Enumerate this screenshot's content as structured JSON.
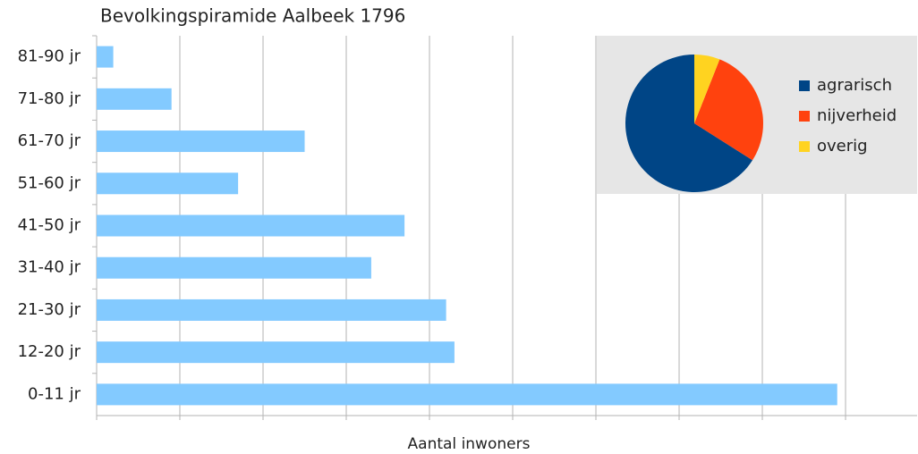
{
  "chart_data": [
    {
      "type": "barh",
      "title": "Bevolkingspiramide Aalbeek 1796",
      "xlabel": "Aantal inwoners",
      "categories": [
        "81-90 jr",
        "71-80 jr",
        "61-70 jr",
        "51-60 jr",
        "41-50 jr",
        "31-40 jr",
        "21-30 jr",
        "12-20 jr",
        "0-11 jr"
      ],
      "values": [
        2,
        9,
        25,
        17,
        37,
        33,
        42,
        43,
        89
      ],
      "color": "#83caff",
      "xlim": [
        0,
        98.6
      ],
      "xticks": [
        0,
        10,
        20,
        30,
        40,
        50,
        60,
        70,
        80,
        90
      ],
      "grid": true
    },
    {
      "type": "pie",
      "categories": [
        "agrarisch",
        "nijverheid",
        "overig"
      ],
      "values": [
        66,
        28,
        6
      ],
      "colors": [
        "#004586",
        "#ff420e",
        "#ffd320"
      ],
      "legend": "right"
    }
  ]
}
